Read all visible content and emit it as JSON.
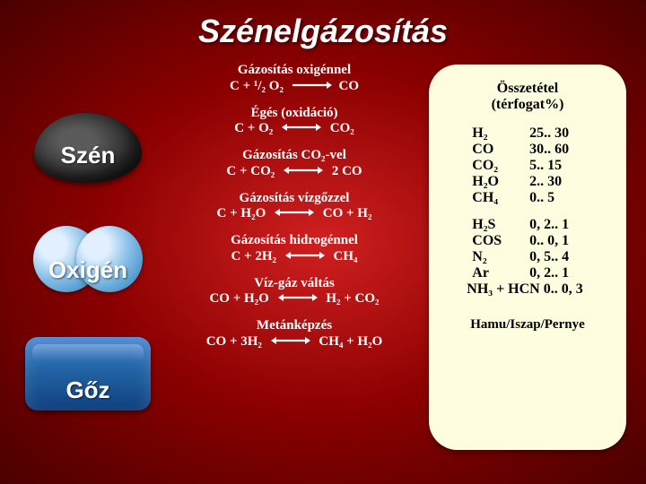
{
  "title": "Szénelgázosítás",
  "left": {
    "coal_label": "Szén",
    "oxygen_label": "Oxigén",
    "steam_label": "Gőz"
  },
  "reactions": {
    "r1": {
      "title": "Gázosítás oxigénnel",
      "left": "C + ¹/₂ O₂",
      "right": "CO",
      "arrow": "right"
    },
    "r2": {
      "title": "Égés (oxidáció)",
      "left": "C + O₂",
      "right": "CO₂",
      "arrow": "both"
    },
    "r3": {
      "title": "Gázosítás CO₂-vel",
      "left": "C + CO₂",
      "right": "2 CO",
      "arrow": "both"
    },
    "r4": {
      "title": "Gázosítás vízgőzzel",
      "left": "C + H₂O",
      "right": "CO + H₂",
      "arrow": "both"
    },
    "r5": {
      "title": "Gázosítás hidrogénnel",
      "left": "C + 2H₂",
      "right": "CH₄",
      "arrow": "both"
    },
    "r6": {
      "title": "Víz-gáz váltás",
      "left": "CO  + H₂O",
      "right": "H₂  + CO₂",
      "arrow": "both"
    },
    "r7": {
      "title": "Metánképzés",
      "left": "CO + 3H₂",
      "right": "CH₄ + H₂O",
      "arrow": "both"
    }
  },
  "panel": {
    "title_line1": "Összetétel",
    "title_line2": "(térfogat%)",
    "rows1": [
      {
        "sp": "H₂",
        "val": "25.. 30"
      },
      {
        "sp": "CO",
        "val": "30.. 60"
      },
      {
        "sp": "CO₂",
        "val": "5.. 15"
      },
      {
        "sp": "H₂O",
        "val": "2.. 30"
      },
      {
        "sp": "CH₄",
        "val": "0.. 5"
      }
    ],
    "rows2": [
      {
        "sp": "H₂S",
        "val": "0, 2.. 1"
      },
      {
        "sp": "COS",
        "val": "0.. 0, 1"
      },
      {
        "sp": "N₂",
        "val": "0, 5.. 4"
      },
      {
        "sp": "Ar",
        "val": "0, 2.. 1"
      }
    ],
    "long_row": "NH₃ + HCN   0.. 0, 3",
    "footer": "Hamu/Iszap/Pernye"
  },
  "colors": {
    "bg_center": "#d02020",
    "bg_mid": "#8b0000",
    "bg_edge": "#4a0000",
    "panel_bg": "#fffde0",
    "text_light": "#ffffff",
    "text_dark": "#000000",
    "arrow_color": "#ffffff"
  }
}
